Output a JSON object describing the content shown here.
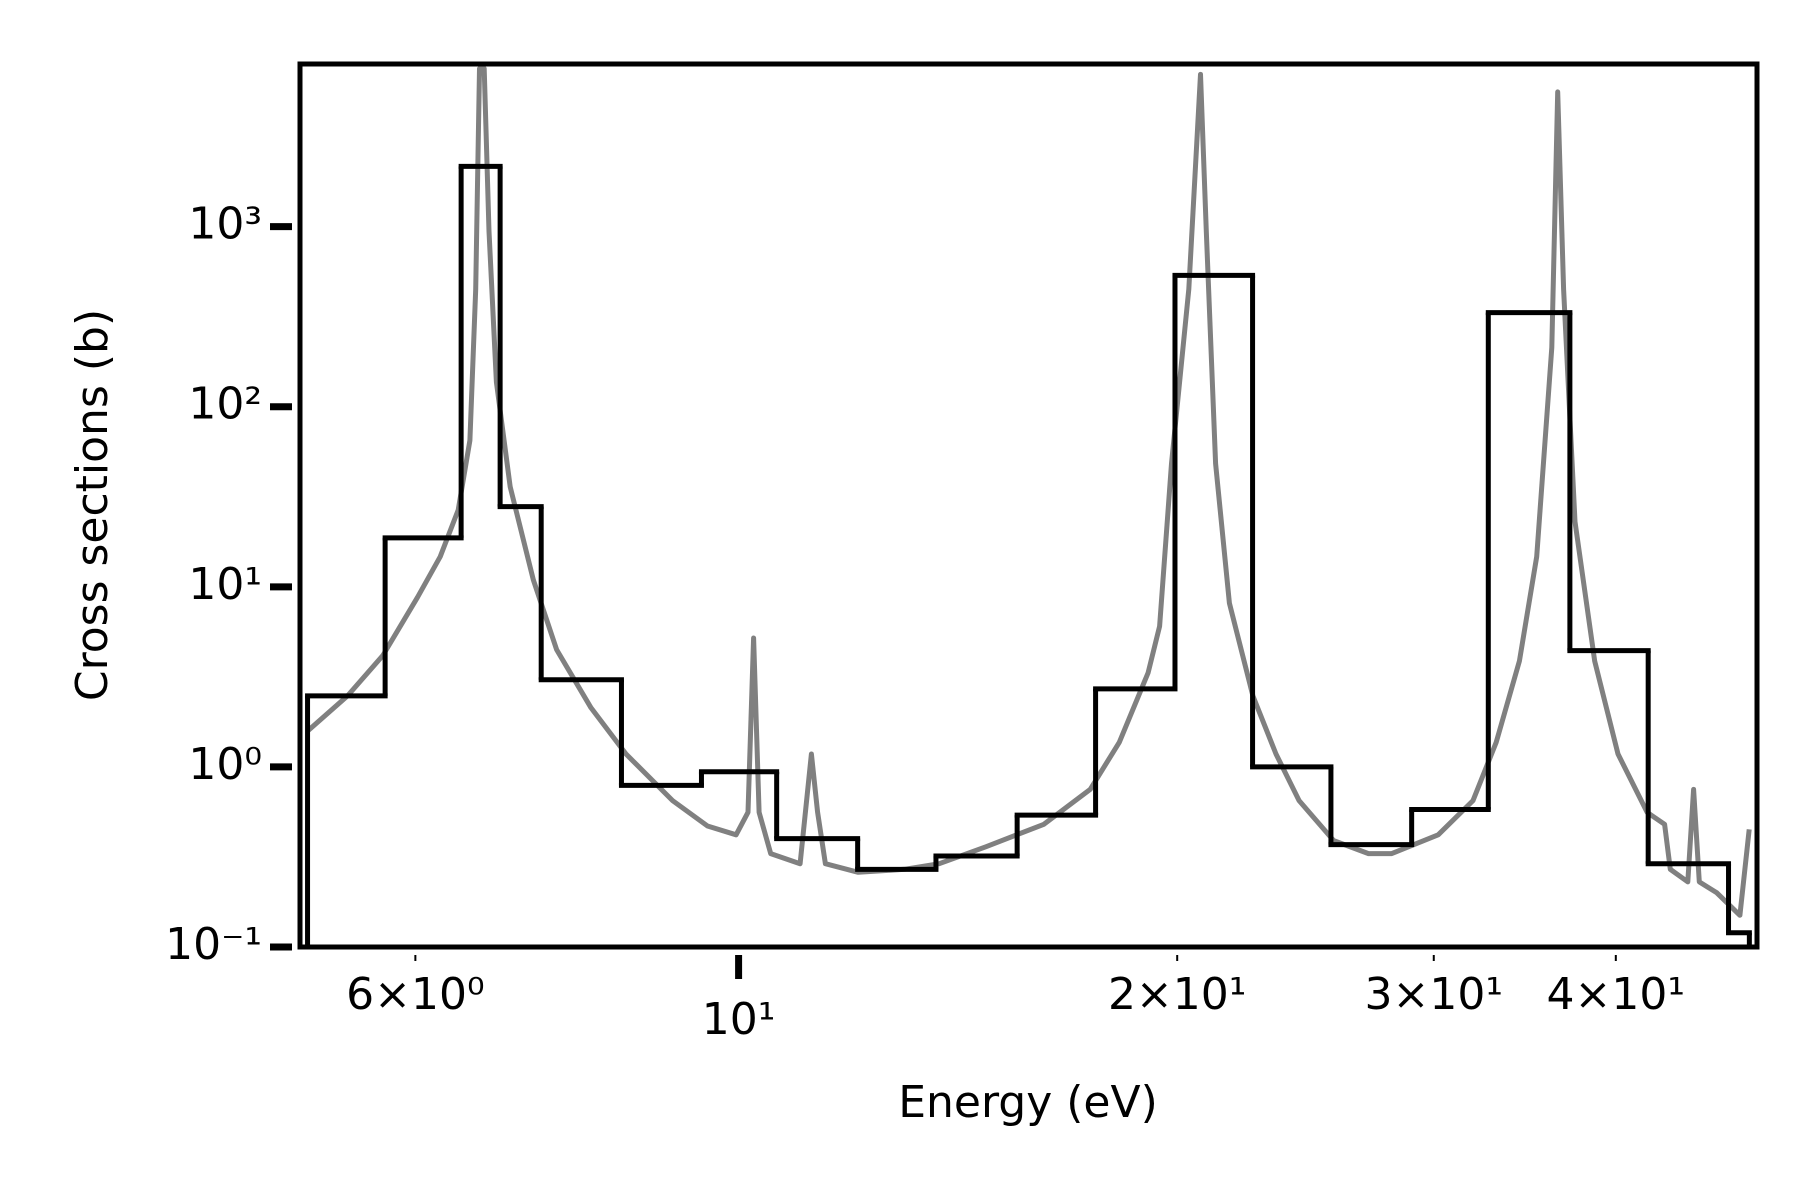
{
  "chart_data": {
    "type": "line",
    "xlabel": "Energy (eV)",
    "ylabel": "Cross sections (b)",
    "xscale": "log",
    "yscale": "log",
    "xlim": [
      5,
      50
    ],
    "ylim": [
      0.1,
      8000
    ],
    "xticks": [
      {
        "value": 6,
        "label": "6×10⁰"
      },
      {
        "value": 10,
        "label": "10¹"
      },
      {
        "value": 20,
        "label": "2×10¹"
      },
      {
        "value": 30,
        "label": "3×10¹"
      },
      {
        "value": 40,
        "label": "4×10¹"
      }
    ],
    "yticks": [
      {
        "value": 0.1,
        "label": "10⁻¹"
      },
      {
        "value": 1,
        "label": "10⁰"
      },
      {
        "value": 10,
        "label": "10¹"
      },
      {
        "value": 100,
        "label": "10²"
      },
      {
        "value": 1000,
        "label": "10³"
      }
    ],
    "series": [
      {
        "type": "line",
        "color": "#808080",
        "x": [
          5.06,
          5.39,
          5.7,
          6.02,
          6.24,
          6.42,
          6.54,
          6.6,
          6.64,
          6.69,
          6.74,
          6.82,
          6.97,
          7.23,
          7.5,
          7.92,
          8.37,
          9.01,
          9.52,
          9.96,
          10.15,
          10.24,
          10.33,
          10.52,
          11.02,
          11.22,
          11.33,
          11.47,
          12.08,
          13.0,
          13.73,
          14.78,
          16.2,
          17.43,
          18.25,
          19.1,
          19.45,
          19.82,
          20.37,
          20.75,
          20.94,
          21.25,
          21.72,
          22.54,
          23.38,
          24.25,
          25.61,
          27.06,
          28.07,
          30.21,
          31.92,
          33.11,
          34.35,
          35.3,
          36.15,
          36.49,
          36.83,
          37.5,
          38.69,
          40.14,
          42.03,
          43.21,
          43.6,
          44.82,
          45.23,
          45.64,
          46.92,
          48.67,
          49.39
        ],
        "values": [
          1.58,
          2.48,
          4.16,
          8.75,
          14.7,
          26.7,
          65,
          449,
          7540,
          7540,
          942,
          137,
          35.9,
          10.9,
          4.48,
          2.13,
          1.18,
          0.65,
          0.47,
          0.42,
          0.56,
          5.2,
          0.56,
          0.33,
          0.29,
          1.18,
          0.56,
          0.29,
          0.26,
          0.27,
          0.29,
          0.36,
          0.48,
          0.75,
          1.37,
          3.33,
          6.04,
          48.3,
          449,
          7000,
          942,
          48.3,
          8.12,
          2.48,
          1.18,
          0.65,
          0.39,
          0.33,
          0.33,
          0.42,
          0.65,
          1.37,
          3.87,
          14.7,
          213,
          5600,
          449,
          23,
          3.87,
          1.18,
          0.56,
          0.48,
          0.27,
          0.23,
          0.75,
          0.23,
          0.2,
          0.15,
          0.45
        ]
      },
      {
        "type": "step",
        "color": "#000000",
        "bins": [
          5.06,
          5.72,
          6.45,
          6.86,
          7.32,
          8.31,
          9.43,
          10.62,
          12.07,
          13.66,
          15.53,
          17.58,
          19.93,
          22.53,
          25.5,
          28.97,
          32.7,
          37.2,
          42.1,
          47.8,
          49.4
        ],
        "values": [
          2.48,
          18.7,
          2160,
          27.9,
          3.05,
          0.79,
          0.94,
          0.4,
          0.27,
          0.32,
          0.54,
          2.71,
          536,
          1.0,
          0.37,
          0.58,
          333,
          4.42,
          0.29,
          0.12
        ]
      }
    ]
  }
}
